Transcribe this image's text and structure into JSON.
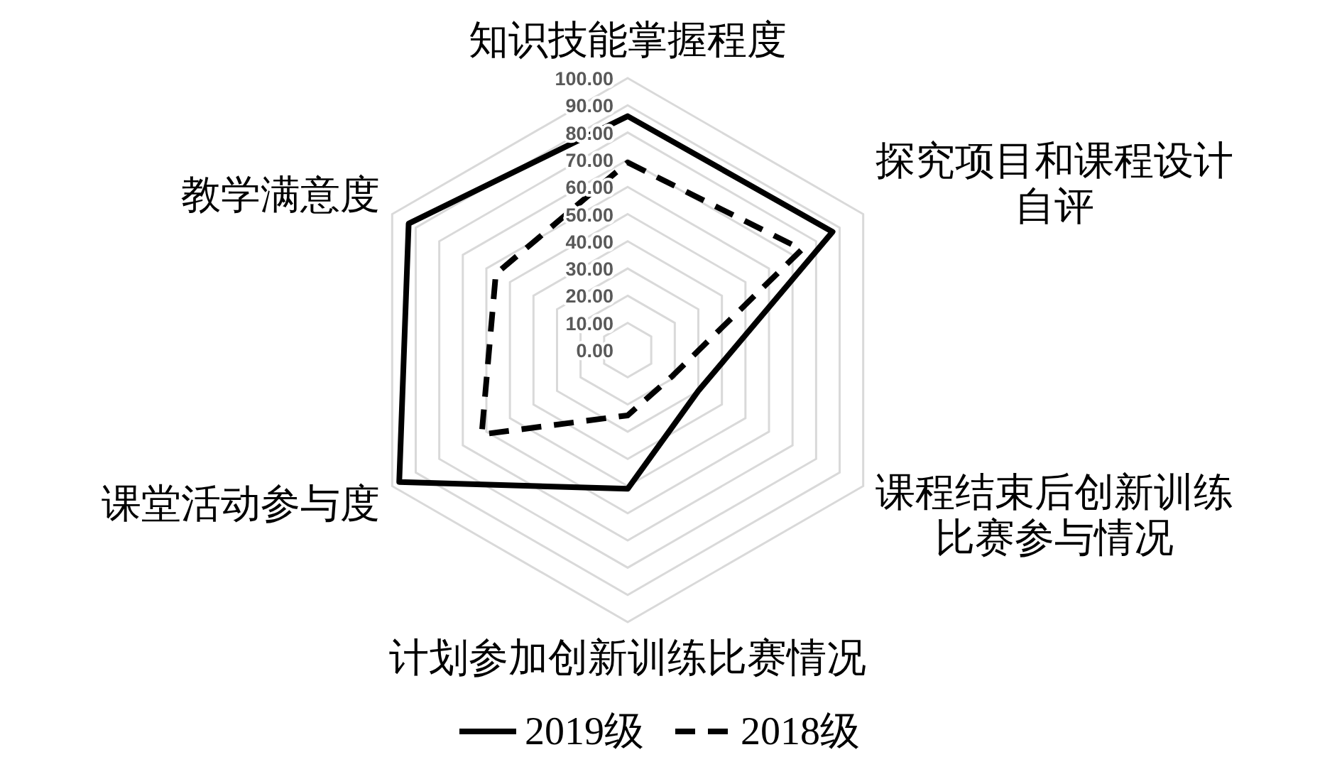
{
  "chart_data": {
    "type": "radar",
    "categories": [
      "知识技能掌握程度",
      "探究项目和课程设计自评",
      "课程结束后创新训练比赛参与情况",
      "计划参加创新训练比赛情况",
      "课堂活动参与度",
      "教学满意度"
    ],
    "series": [
      {
        "name": "2019级",
        "color": "#000000",
        "line_style": "solid",
        "values": [
          86,
          87,
          30,
          51,
          97,
          93
        ]
      },
      {
        "name": "2018级",
        "color": "#000000",
        "line_style": "dashed",
        "values": [
          69,
          74,
          19,
          24,
          62,
          56
        ]
      }
    ],
    "ylim": [
      0,
      100
    ],
    "yticks": [
      {
        "value": 0,
        "label": "0.00"
      },
      {
        "value": 10,
        "label": "10.00"
      },
      {
        "value": 20,
        "label": "20.00"
      },
      {
        "value": 30,
        "label": "30.00"
      },
      {
        "value": 40,
        "label": "40.00"
      },
      {
        "value": 50,
        "label": "50.00"
      },
      {
        "value": 60,
        "label": "60.00"
      },
      {
        "value": 70,
        "label": "70.00"
      },
      {
        "value": 80,
        "label": "80.00"
      },
      {
        "value": 90,
        "label": "90.00"
      },
      {
        "value": 100,
        "label": "100.00"
      }
    ],
    "grid": true,
    "legend": "bottom"
  }
}
